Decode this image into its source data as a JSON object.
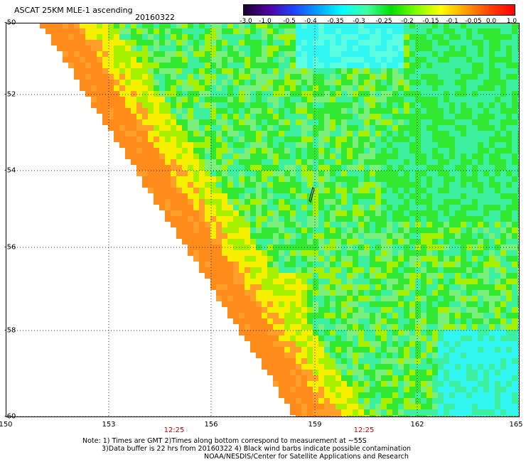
{
  "header": {
    "title": "ASCAT 25KM MLE-1 ascending",
    "date": "20160322"
  },
  "colorbar": {
    "labels": [
      "-3.0",
      "-1.0",
      "-0.5",
      "-0.4",
      "-0.35",
      "-0.3",
      "-0.25",
      "-0.2",
      "-0.15",
      "-0.1",
      "-0.05",
      "0.0",
      "1.0"
    ],
    "colors": [
      "#1a0030",
      "#5000a0",
      "#2040ff",
      "#00a0ff",
      "#00ffff",
      "#40ffa0",
      "#00e000",
      "#80ff00",
      "#ffff00",
      "#ffa000",
      "#ff4000",
      "#ff0000"
    ]
  },
  "axes": {
    "lat_labels": [
      "-50",
      "-52",
      "-54",
      "-56",
      "-58",
      "-60"
    ],
    "lon_labels": [
      "150",
      "153",
      "156",
      "159",
      "162",
      "165"
    ],
    "time_labels": [
      "12:25",
      "12:25"
    ]
  },
  "notes": [
    "Note: 1) Times are GMT 2)Times along bottom correspond to measurement at ~55S",
    "3)Data buffer is 22 hrs from 20160322 4) Black wind barbs indicate possible contamination",
    "NOAA/NESDIS/Center for Satellite Applications and Research"
  ]
}
